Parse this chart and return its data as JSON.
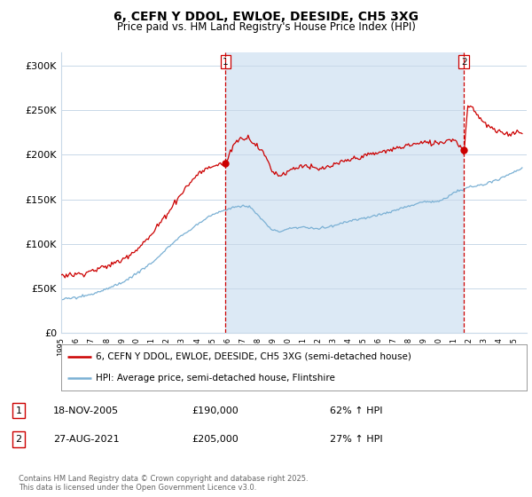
{
  "title": "6, CEFN Y DDOL, EWLOE, DEESIDE, CH5 3XG",
  "subtitle": "Price paid vs. HM Land Registry's House Price Index (HPI)",
  "yticks": [
    0,
    50000,
    100000,
    150000,
    200000,
    250000,
    300000
  ],
  "ytick_labels": [
    "£0",
    "£50K",
    "£100K",
    "£150K",
    "£200K",
    "£250K",
    "£300K"
  ],
  "xlim_start": 1995.0,
  "xlim_end": 2025.8,
  "ylim": [
    0,
    315000
  ],
  "legend_line1": "6, CEFN Y DDOL, EWLOE, DEESIDE, CH5 3XG (semi-detached house)",
  "legend_line2": "HPI: Average price, semi-detached house, Flintshire",
  "sale1_date": "18-NOV-2005",
  "sale1_price": "£190,000",
  "sale1_hpi": "62% ↑ HPI",
  "sale1_x": 2005.88,
  "sale1_y": 190000,
  "sale2_date": "27-AUG-2021",
  "sale2_price": "£205,000",
  "sale2_hpi": "27% ↑ HPI",
  "sale2_x": 2021.65,
  "sale2_y": 205000,
  "footer": "Contains HM Land Registry data © Crown copyright and database right 2025.\nThis data is licensed under the Open Government Licence v3.0.",
  "line_color_red": "#cc0000",
  "line_color_blue": "#7ab0d4",
  "vline_color": "#cc0000",
  "shade_color": "#dce9f5",
  "background_color": "#ffffff",
  "grid_color": "#c8d8e8"
}
